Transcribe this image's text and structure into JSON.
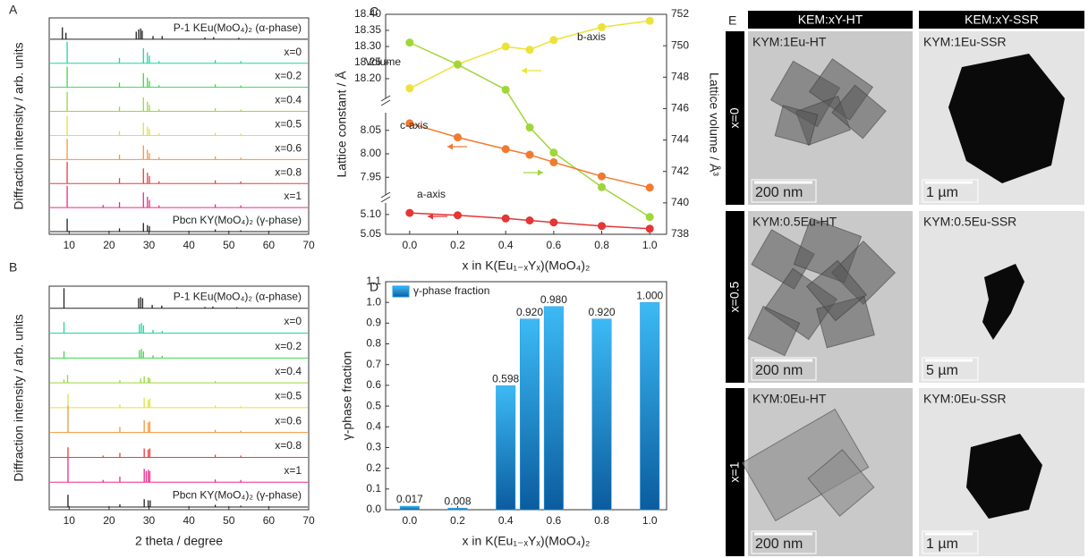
{
  "chart_data": [
    {
      "panel_label": "A",
      "type": "spectra",
      "ylabel": "Diffraction intensity / arb. units",
      "xlim": [
        5,
        70
      ],
      "xticks": [
        10,
        20,
        30,
        40,
        50,
        60,
        70
      ],
      "series": [
        {
          "name": "P-1 KEu(MoO₄)₂ (α-phase)",
          "color": "#222222",
          "x": [
            8.3,
            9.2,
            26.8,
            27.4,
            27.9,
            28.3,
            31,
            33.3,
            44,
            46.2,
            52.5
          ],
          "values": [
            0.55,
            0.3,
            0.35,
            0.45,
            0.5,
            0.4,
            0.15,
            0.15,
            0.08,
            0.1,
            0.07
          ]
        },
        {
          "name": "x=0",
          "color": "#20d6a0",
          "x": [
            9.5,
            22.6,
            28.6,
            29.6,
            30.1,
            32.5,
            46.6,
            53
          ],
          "values": [
            1.0,
            0.25,
            0.7,
            0.5,
            0.35,
            0.1,
            0.15,
            0.1
          ]
        },
        {
          "name": "x=0.2",
          "color": "#3cd94a",
          "x": [
            9.5,
            22.6,
            28.6,
            29.6,
            30.1,
            32.5,
            46.6,
            53
          ],
          "values": [
            0.95,
            0.22,
            0.65,
            0.45,
            0.3,
            0.1,
            0.14,
            0.08
          ]
        },
        {
          "name": "x=0.4",
          "color": "#9ad93a",
          "x": [
            9.5,
            22.6,
            28.6,
            29.6,
            30.1,
            32.5,
            46.6,
            53
          ],
          "values": [
            0.9,
            0.22,
            0.65,
            0.45,
            0.3,
            0.1,
            0.14,
            0.08
          ]
        },
        {
          "name": "x=0.5",
          "color": "#e0e040",
          "x": [
            9.5,
            22.6,
            28.6,
            29.6,
            30.1,
            32.5,
            46.6,
            53
          ],
          "values": [
            0.9,
            0.2,
            0.6,
            0.4,
            0.3,
            0.1,
            0.12,
            0.08
          ]
        },
        {
          "name": "x=0.6",
          "color": "#f5963a",
          "x": [
            9.5,
            22.6,
            28.6,
            29.6,
            30.1,
            32.5,
            46.6,
            53
          ],
          "values": [
            0.95,
            0.22,
            0.65,
            0.45,
            0.3,
            0.1,
            0.14,
            0.08
          ]
        },
        {
          "name": "x=0.8",
          "color": "#f03c3c",
          "x": [
            9.5,
            22.6,
            28.6,
            29.6,
            30.1,
            32.5,
            46.6,
            53
          ],
          "values": [
            1.0,
            0.25,
            0.7,
            0.5,
            0.35,
            0.1,
            0.15,
            0.1
          ]
        },
        {
          "name": "x=1",
          "color": "#ee2a8c",
          "x": [
            9.5,
            18.5,
            22.6,
            28.6,
            29.6,
            30.1,
            32.5,
            46.6,
            53
          ],
          "values": [
            1.0,
            0.12,
            0.25,
            0.7,
            0.5,
            0.35,
            0.1,
            0.15,
            0.1
          ]
        },
        {
          "name": "Pbcn KY(MoO₄)₂ (γ-phase)",
          "color": "#222222",
          "x": [
            9.5,
            22.6,
            28.6,
            29.6,
            30.1,
            46.6,
            53
          ],
          "values": [
            0.6,
            0.15,
            0.4,
            0.3,
            0.25,
            0.1,
            0.06
          ]
        }
      ]
    },
    {
      "panel_label": "B",
      "type": "spectra",
      "ylabel": "Diffraction intensity / arb. units",
      "xlabel": "2 theta / degree",
      "xlim": [
        5,
        70
      ],
      "xticks": [
        10,
        20,
        30,
        40,
        50,
        60,
        70
      ],
      "series": [
        {
          "name": "P-1 KEu(MoO₄)₂ (α-phase)",
          "color": "#222222",
          "x": [
            8.7,
            27.4,
            27.9,
            28.4,
            30.8,
            33.2,
            44,
            46,
            52
          ],
          "values": [
            0.9,
            0.45,
            0.5,
            0.45,
            0.15,
            0.12,
            0.06,
            0.08,
            0.05
          ]
        },
        {
          "name": "x=0",
          "color": "#20d6a0",
          "x": [
            8.7,
            27.6,
            28.1,
            28.6,
            31,
            33.3
          ],
          "values": [
            0.5,
            0.4,
            0.45,
            0.35,
            0.15,
            0.1
          ]
        },
        {
          "name": "x=0.2",
          "color": "#3cd94a",
          "x": [
            8.7,
            27.6,
            28.1,
            28.6,
            31,
            33.3
          ],
          "values": [
            0.3,
            0.35,
            0.4,
            0.3,
            0.12,
            0.1
          ]
        },
        {
          "name": "x=0.4",
          "color": "#9ad93a",
          "x": [
            8.7,
            9.6,
            22.7,
            27.9,
            28.8,
            29.8,
            30.2,
            46.6
          ],
          "values": [
            0.15,
            0.35,
            0.12,
            0.2,
            0.3,
            0.25,
            0.2,
            0.08
          ]
        },
        {
          "name": "x=0.5",
          "color": "#e0e040",
          "x": [
            9.7,
            22.7,
            28.8,
            29.8,
            30.2,
            46.6,
            53
          ],
          "values": [
            0.6,
            0.15,
            0.45,
            0.35,
            0.4,
            0.1,
            0.06
          ]
        },
        {
          "name": "x=0.6",
          "color": "#f5963a",
          "x": [
            9.7,
            22.7,
            28.8,
            29.8,
            30.2,
            46.6,
            53
          ],
          "values": [
            1.2,
            0.25,
            0.55,
            0.45,
            0.5,
            0.12,
            0.08
          ]
        },
        {
          "name": "x=0.8",
          "color": "#f03c3c",
          "x": [
            9.7,
            18.5,
            22.7,
            28.8,
            29.8,
            30.2,
            46.6,
            53
          ],
          "values": [
            0.45,
            0.08,
            0.2,
            0.4,
            0.35,
            0.4,
            0.12,
            0.08
          ]
        },
        {
          "name": "x=1",
          "color": "#ee2a8c",
          "x": [
            9.7,
            18.5,
            22.7,
            28.8,
            29.3,
            29.8,
            30.2,
            46.6,
            53
          ],
          "values": [
            1.1,
            0.1,
            0.25,
            0.6,
            0.5,
            0.55,
            0.5,
            0.12,
            0.1
          ]
        },
        {
          "name": "Pbcn KY(MoO₄)₂ (γ-phase)",
          "color": "#222222",
          "x": [
            9.7,
            22.7,
            28.8,
            29.8,
            30.3,
            46.6,
            53
          ],
          "values": [
            0.55,
            0.12,
            0.35,
            0.3,
            0.3,
            0.1,
            0.06
          ]
        }
      ]
    },
    {
      "panel_label": "C",
      "type": "line",
      "xlabel": "x in K(Eu₁₋ₓYₓ)(MoO₄)₂",
      "ylabel": "Lattice constant / Å",
      "y2label": "Lattice volume / Å³",
      "x": [
        0,
        0.2,
        0.4,
        0.5,
        0.6,
        0.8,
        1
      ],
      "xlim": [
        -0.1,
        1.07
      ],
      "xticks": [
        {
          "value": 0,
          "label": "0.0"
        },
        0.2,
        0.4,
        0.6,
        0.8,
        {
          "value": 1,
          "label": "1.0"
        }
      ],
      "ylim": [
        5.05,
        18.4
      ],
      "ysegments": [
        [
          5.05,
          5.12
        ],
        [
          7.92,
          8.08
        ],
        [
          18.15,
          18.4
        ]
      ],
      "yticks": [
        {
          "value": 5.05,
          "label": "5.05"
        },
        {
          "value": 5.1,
          "label": "5.10"
        },
        7.95,
        {
          "value": 8,
          "label": "8.00"
        },
        8.05,
        {
          "value": 18.2,
          "label": "18.20"
        },
        18.25,
        {
          "value": 18.3,
          "label": "18.30"
        },
        18.35,
        {
          "value": 18.4,
          "label": "18.40"
        }
      ],
      "y2lim": [
        738,
        752
      ],
      "y2ticks": [
        738,
        740,
        742,
        744,
        746,
        748,
        750,
        752
      ],
      "series": [
        {
          "name": "b-axis",
          "color": "#ece23a",
          "values": [
            18.17,
            18.245,
            18.3,
            18.29,
            18.32,
            18.36,
            18.38
          ]
        },
        {
          "name": "Volume",
          "color": "#9fd63a",
          "axis": "y2",
          "values": [
            750.2,
            748.8,
            747.2,
            744.8,
            743.2,
            741.0,
            739.1
          ]
        },
        {
          "name": "c-axis",
          "color": "#f07a30",
          "values": [
            8.065,
            8.035,
            8.01,
            7.998,
            7.982,
            7.952,
            7.928
          ]
        },
        {
          "name": "a-axis",
          "color": "#e53535",
          "values": [
            5.104,
            5.098,
            5.09,
            5.085,
            5.08,
            5.071,
            5.064
          ]
        }
      ]
    },
    {
      "panel_label": "D",
      "type": "bar",
      "xlabel": "x in K(Eu₁₋ₓYₓ)(MoO₄)₂",
      "ylabel": "γ-phase fraction",
      "x": [
        0,
        0.2,
        0.4,
        0.5,
        0.6,
        0.8,
        1
      ],
      "xlim": [
        -0.1,
        1.07
      ],
      "xticks": [
        {
          "value": 0,
          "label": "0.0"
        },
        0.2,
        0.4,
        0.6,
        0.8,
        {
          "value": 1,
          "label": "1.0"
        }
      ],
      "ylim": [
        0,
        1.1
      ],
      "yticks": [
        {
          "value": 0,
          "label": "0.0"
        },
        0.1,
        0.2,
        0.3,
        0.4,
        0.5,
        0.6,
        0.7,
        0.8,
        0.9,
        {
          "value": 1,
          "label": "1.0"
        },
        1.1
      ],
      "series": [
        {
          "name": "γ-phase fraction",
          "color": "#1e9be8",
          "values": [
            0.017,
            0.008,
            0.598,
            0.92,
            0.98,
            0.92,
            1.0
          ],
          "value_labels": [
            "0.017",
            "0.008",
            "0.598",
            "0.920",
            "0.980",
            "0.920",
            "1.000"
          ]
        }
      ]
    }
  ],
  "micrographs": {
    "panel_label": "E",
    "columns": [
      "KEM:xY-HT",
      "KEM:xY-SSR"
    ],
    "rows": [
      {
        "label": "x=0",
        "cells": [
          {
            "caption": "KYM:1Eu-HT",
            "scale": "200 nm"
          },
          {
            "caption": "KYM:1Eu-SSR",
            "scale": "1 µm"
          }
        ]
      },
      {
        "label": "x=0.5",
        "cells": [
          {
            "caption": "KYM:0.5Eu-HT",
            "scale": "200 nm"
          },
          {
            "caption": "KYM:0.5Eu-SSR",
            "scale": "5 µm"
          }
        ]
      },
      {
        "label": "x=1",
        "cells": [
          {
            "caption": "KYM:0Eu-HT",
            "scale": "200 nm"
          },
          {
            "caption": "KYM:0Eu-SSR",
            "scale": "1 µm"
          }
        ]
      }
    ]
  }
}
